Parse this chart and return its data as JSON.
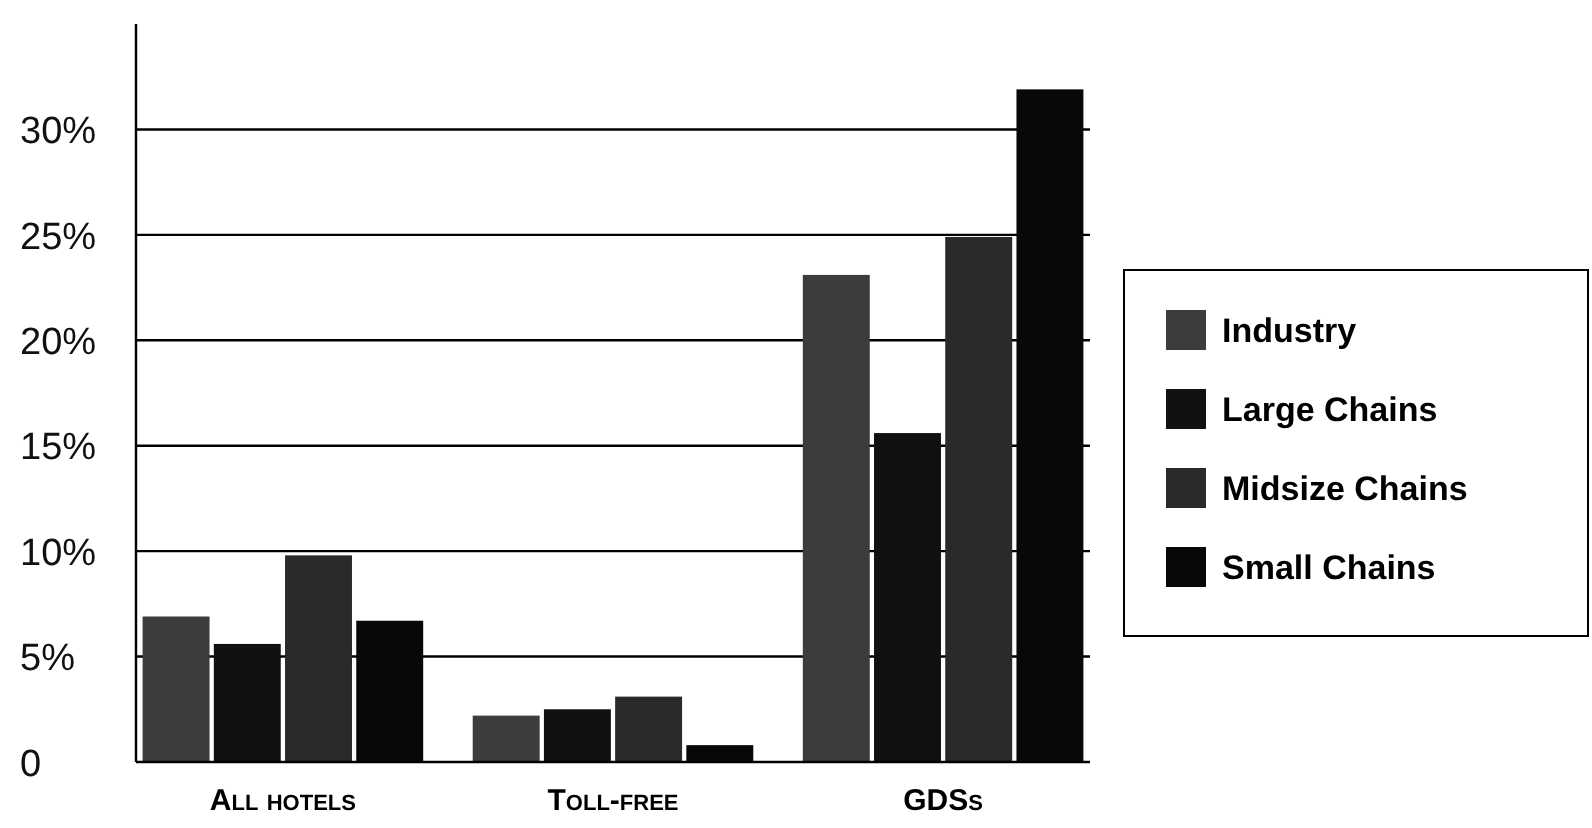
{
  "chart_data": {
    "type": "bar",
    "categories": [
      "All hotels",
      "Toll-free",
      "GDSs"
    ],
    "series": [
      {
        "name": "Industry",
        "color": "#3c3c3c",
        "values": [
          6.9,
          2.2,
          23.1
        ]
      },
      {
        "name": "Large Chains",
        "color": "#111111",
        "values": [
          5.6,
          2.5,
          15.6
        ]
      },
      {
        "name": "Midsize Chains",
        "color": "#2a2a2a",
        "values": [
          9.8,
          3.1,
          24.9
        ]
      },
      {
        "name": "Small Chains",
        "color": "#080808",
        "values": [
          6.7,
          0.8,
          31.9
        ]
      }
    ],
    "ylim": [
      0,
      35
    ],
    "yticks": [
      {
        "value": 0,
        "label": "0"
      },
      {
        "value": 5,
        "label": "5%"
      },
      {
        "value": 10,
        "label": "10%"
      },
      {
        "value": 15,
        "label": "15%"
      },
      {
        "value": 20,
        "label": "20%"
      },
      {
        "value": 25,
        "label": "25%"
      },
      {
        "value": 30,
        "label": "30%"
      }
    ],
    "grid": "y",
    "legend": "right"
  }
}
